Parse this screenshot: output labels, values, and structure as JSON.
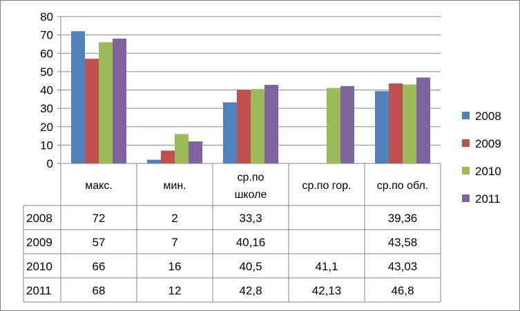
{
  "chart_data": {
    "type": "bar",
    "categories": [
      "макс.",
      "мин.",
      "ср.по школе",
      "ср.по гор.",
      "ср.по обл."
    ],
    "category_lines": [
      [
        "макс."
      ],
      [
        "мин."
      ],
      [
        "ср.по",
        "школе"
      ],
      [
        "ср.по гор."
      ],
      [
        "ср.по обл."
      ]
    ],
    "series": [
      {
        "name": "2008",
        "color": "#4f81bd",
        "values": [
          72,
          2,
          33.3,
          null,
          39.36
        ],
        "labels": [
          "72",
          "2",
          "33,3",
          "",
          "39,36"
        ]
      },
      {
        "name": "2009",
        "color": "#c0504d",
        "values": [
          57,
          7,
          40.16,
          null,
          43.58
        ],
        "labels": [
          "57",
          "7",
          "40,16",
          "",
          "43,58"
        ]
      },
      {
        "name": "2010",
        "color": "#9bbb59",
        "values": [
          66,
          16,
          40.5,
          41.1,
          43.03
        ],
        "labels": [
          "66",
          "16",
          "40,5",
          "41,1",
          "43,03"
        ]
      },
      {
        "name": "2011",
        "color": "#8064a2",
        "values": [
          68,
          12,
          42.8,
          42.13,
          46.8
        ],
        "labels": [
          "68",
          "12",
          "42,8",
          "42,13",
          "46,8"
        ]
      }
    ],
    "ylim": [
      0,
      80
    ],
    "yticks": [
      0,
      10,
      20,
      30,
      40,
      50,
      60,
      70,
      80
    ],
    "grid": true,
    "legend": "right",
    "data_table": true
  }
}
